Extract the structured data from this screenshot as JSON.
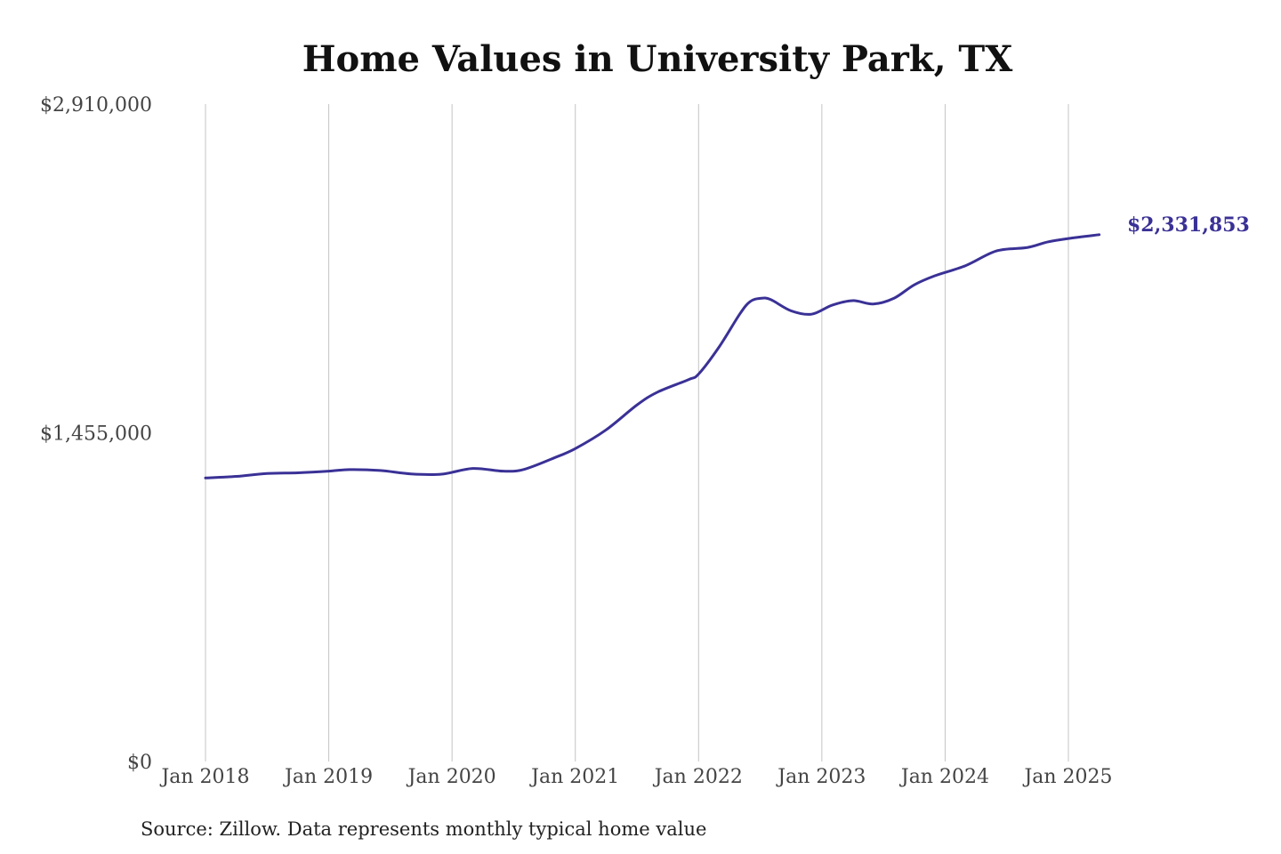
{
  "chart_data": {
    "type": "line",
    "title": "Home Values in University Park, TX",
    "xlabel": "",
    "ylabel": "",
    "source": "Source: Zillow. Data represents monthly typical home value",
    "ylim": [
      0,
      2910000
    ],
    "y_ticks": [
      {
        "value": 0,
        "label": "$0"
      },
      {
        "value": 1455000,
        "label": "$1,455,000"
      },
      {
        "value": 2910000,
        "label": "$2,910,000"
      }
    ],
    "x_ticks": [
      {
        "date": "2018-01",
        "label": "Jan 2018"
      },
      {
        "date": "2019-01",
        "label": "Jan 2019"
      },
      {
        "date": "2020-01",
        "label": "Jan 2020"
      },
      {
        "date": "2021-01",
        "label": "Jan 2021"
      },
      {
        "date": "2022-01",
        "label": "Jan 2022"
      },
      {
        "date": "2023-01",
        "label": "Jan 2023"
      },
      {
        "date": "2024-01",
        "label": "Jan 2024"
      },
      {
        "date": "2025-01",
        "label": "Jan 2025"
      }
    ],
    "grid": {
      "vertical": true,
      "horizontal": false
    },
    "line_color": "#3a3196",
    "end_label": "$2,331,853",
    "series": [
      {
        "points": [
          {
            "x": "2018-01",
            "y": 1255000
          },
          {
            "x": "2018-04",
            "y": 1262000
          },
          {
            "x": "2018-07",
            "y": 1275000
          },
          {
            "x": "2018-10",
            "y": 1278000
          },
          {
            "x": "2019-01",
            "y": 1285000
          },
          {
            "x": "2019-03",
            "y": 1292000
          },
          {
            "x": "2019-06",
            "y": 1288000
          },
          {
            "x": "2019-09",
            "y": 1273000
          },
          {
            "x": "2019-12",
            "y": 1272000
          },
          {
            "x": "2020-03",
            "y": 1297000
          },
          {
            "x": "2020-06",
            "y": 1285000
          },
          {
            "x": "2020-08",
            "y": 1293000
          },
          {
            "x": "2020-11",
            "y": 1345000
          },
          {
            "x": "2021-01",
            "y": 1385000
          },
          {
            "x": "2021-04",
            "y": 1468000
          },
          {
            "x": "2021-07",
            "y": 1578000
          },
          {
            "x": "2021-09",
            "y": 1635000
          },
          {
            "x": "2021-12",
            "y": 1690000
          },
          {
            "x": "2022-01",
            "y": 1715000
          },
          {
            "x": "2022-03",
            "y": 1835000
          },
          {
            "x": "2022-05",
            "y": 1980000
          },
          {
            "x": "2022-06",
            "y": 2035000
          },
          {
            "x": "2022-07",
            "y": 2050000
          },
          {
            "x": "2022-08",
            "y": 2045000
          },
          {
            "x": "2022-10",
            "y": 1995000
          },
          {
            "x": "2022-12",
            "y": 1980000
          },
          {
            "x": "2023-02",
            "y": 2020000
          },
          {
            "x": "2023-04",
            "y": 2040000
          },
          {
            "x": "2023-06",
            "y": 2025000
          },
          {
            "x": "2023-08",
            "y": 2050000
          },
          {
            "x": "2023-10",
            "y": 2110000
          },
          {
            "x": "2023-12",
            "y": 2150000
          },
          {
            "x": "2024-03",
            "y": 2195000
          },
          {
            "x": "2024-06",
            "y": 2260000
          },
          {
            "x": "2024-09",
            "y": 2275000
          },
          {
            "x": "2024-11",
            "y": 2300000
          },
          {
            "x": "2025-01",
            "y": 2315000
          },
          {
            "x": "2025-04",
            "y": 2331853
          }
        ]
      }
    ]
  }
}
